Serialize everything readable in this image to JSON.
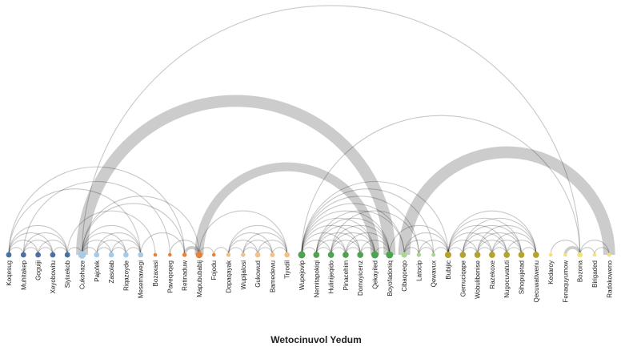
{
  "chart_data": {
    "type": "arc",
    "title": "Wetocinuvol Yedum",
    "groups": [
      {
        "id": 1,
        "color": "#4a6fa5"
      },
      {
        "id": 2,
        "color": "#a6cbe8"
      },
      {
        "id": 3,
        "color": "#e8813a"
      },
      {
        "id": 4,
        "color": "#f4c08a"
      },
      {
        "id": 5,
        "color": "#4fa34f"
      },
      {
        "id": 6,
        "color": "#a7d88f"
      },
      {
        "id": 7,
        "color": "#b5a32b"
      },
      {
        "id": 8,
        "color": "#f2e27a"
      }
    ],
    "nodes": [
      {
        "label": "Koqesug",
        "group": 1,
        "size": 1
      },
      {
        "label": "Muhitakep",
        "group": 1,
        "size": 1
      },
      {
        "label": "Goguiji",
        "group": 1,
        "size": 1
      },
      {
        "label": "Xeyobowitu",
        "group": 1,
        "size": 1
      },
      {
        "label": "Siyixekob",
        "group": 1,
        "size": 1
      },
      {
        "label": "Cukohaze",
        "group": 2,
        "size": 1.6
      },
      {
        "label": "Pajofek",
        "group": 2,
        "size": 1
      },
      {
        "label": "Zasolab",
        "group": 2,
        "size": 1
      },
      {
        "label": "Riqazoyde",
        "group": 2,
        "size": 1
      },
      {
        "label": "Mesemawegi",
        "group": 2,
        "size": 1
      },
      {
        "label": "Bozaxasi",
        "group": 3,
        "size": 0.5
      },
      {
        "label": "Paveqoqeg",
        "group": 3,
        "size": 0.5
      },
      {
        "label": "Retinaduw",
        "group": 3,
        "size": 0.7
      },
      {
        "label": "Mapububabij",
        "group": 3,
        "size": 1.4
      },
      {
        "label": "Fojodu",
        "group": 3,
        "size": 0.5
      },
      {
        "label": "Dopaqayak",
        "group": 4,
        "size": 0.7
      },
      {
        "label": "Wupijalosi",
        "group": 4,
        "size": 0.7
      },
      {
        "label": "Gukowud",
        "group": 4,
        "size": 1
      },
      {
        "label": "Bamedewu",
        "group": 4,
        "size": 0.8
      },
      {
        "label": "Tiyodil",
        "group": 4,
        "size": 1
      },
      {
        "label": "Wupejovip",
        "group": 5,
        "size": 1.5
      },
      {
        "label": "Nemitapokiqi",
        "group": 5,
        "size": 1.2
      },
      {
        "label": "Hulinijeqido",
        "group": 5,
        "size": 1.2
      },
      {
        "label": "Pinacehim",
        "group": 5,
        "size": 1.2
      },
      {
        "label": "Domoyicenz",
        "group": 5,
        "size": 1.2
      },
      {
        "label": "Qekayiled",
        "group": 5,
        "size": 1.5
      },
      {
        "label": "Boyofadoniq",
        "group": 5,
        "size": 1.5
      },
      {
        "label": "Cibaqoeqo",
        "group": 6,
        "size": 1.1
      },
      {
        "label": "Latocip",
        "group": 6,
        "size": 0.7
      },
      {
        "label": "Qewavux",
        "group": 6,
        "size": 0.6
      },
      {
        "label": "Bubijic",
        "group": 7,
        "size": 1.3
      },
      {
        "label": "Gemuciqape",
        "group": 7,
        "size": 1.2
      },
      {
        "label": "Wobulibenise",
        "group": 7,
        "size": 1.2
      },
      {
        "label": "Razekoxe",
        "group": 7,
        "size": 1.2
      },
      {
        "label": "Nugocuvatuti",
        "group": 7,
        "size": 1.2
      },
      {
        "label": "Sihopujetad",
        "group": 7,
        "size": 1.2
      },
      {
        "label": "Qecuwatiwenu",
        "group": 7,
        "size": 1.2
      },
      {
        "label": "Kedaroy",
        "group": 8,
        "size": 0.5
      },
      {
        "label": "Fenaquyumow",
        "group": 8,
        "size": 0.5
      },
      {
        "label": "Bozona",
        "group": 8,
        "size": 1
      },
      {
        "label": "Birigaded",
        "group": 8,
        "size": 0.5
      },
      {
        "label": "Radokoweno",
        "group": 8,
        "size": 0.6
      }
    ],
    "links": [
      [
        0,
        1,
        1
      ],
      [
        0,
        2,
        1
      ],
      [
        0,
        3,
        1
      ],
      [
        0,
        4,
        1
      ],
      [
        1,
        2,
        1
      ],
      [
        1,
        3,
        1
      ],
      [
        1,
        4,
        1
      ],
      [
        2,
        3,
        1
      ],
      [
        2,
        4,
        1
      ],
      [
        3,
        4,
        1
      ],
      [
        0,
        9,
        1
      ],
      [
        0,
        12,
        1
      ],
      [
        4,
        10,
        1
      ],
      [
        1,
        11,
        1
      ],
      [
        4,
        5,
        1
      ],
      [
        5,
        6,
        1
      ],
      [
        5,
        7,
        1
      ],
      [
        5,
        8,
        1
      ],
      [
        5,
        9,
        1
      ],
      [
        6,
        7,
        1
      ],
      [
        6,
        8,
        1
      ],
      [
        6,
        9,
        1
      ],
      [
        7,
        8,
        1
      ],
      [
        7,
        9,
        1
      ],
      [
        8,
        9,
        1
      ],
      [
        5,
        13,
        1
      ],
      [
        5,
        12,
        1
      ],
      [
        9,
        12,
        1
      ],
      [
        5,
        26,
        8
      ],
      [
        5,
        39,
        1
      ],
      [
        11,
        13,
        1
      ],
      [
        12,
        13,
        2
      ],
      [
        13,
        14,
        1
      ],
      [
        13,
        25,
        6
      ],
      [
        13,
        19,
        1
      ],
      [
        14,
        15,
        1
      ],
      [
        15,
        16,
        1
      ],
      [
        15,
        17,
        1
      ],
      [
        15,
        18,
        1
      ],
      [
        15,
        19,
        1
      ],
      [
        16,
        17,
        1
      ],
      [
        16,
        18,
        1
      ],
      [
        16,
        19,
        1
      ],
      [
        17,
        18,
        1
      ],
      [
        17,
        19,
        1
      ],
      [
        18,
        19,
        1
      ],
      [
        20,
        21,
        1
      ],
      [
        20,
        22,
        1
      ],
      [
        20,
        23,
        1
      ],
      [
        20,
        24,
        1
      ],
      [
        20,
        25,
        1
      ],
      [
        20,
        26,
        1
      ],
      [
        21,
        22,
        1
      ],
      [
        21,
        23,
        1
      ],
      [
        21,
        24,
        1
      ],
      [
        21,
        25,
        1
      ],
      [
        21,
        26,
        1
      ],
      [
        22,
        23,
        1
      ],
      [
        22,
        24,
        1
      ],
      [
        22,
        25,
        1
      ],
      [
        22,
        26,
        1
      ],
      [
        23,
        24,
        1
      ],
      [
        23,
        25,
        1
      ],
      [
        23,
        26,
        1
      ],
      [
        24,
        25,
        1
      ],
      [
        24,
        26,
        1
      ],
      [
        25,
        26,
        1
      ],
      [
        20,
        27,
        1
      ],
      [
        20,
        29,
        1
      ],
      [
        21,
        27,
        1
      ],
      [
        20,
        30,
        1
      ],
      [
        20,
        39,
        1
      ],
      [
        22,
        28,
        1
      ],
      [
        20,
        28,
        1
      ],
      [
        27,
        28,
        1
      ],
      [
        27,
        29,
        1
      ],
      [
        28,
        29,
        1
      ],
      [
        27,
        30,
        1
      ],
      [
        26,
        30,
        1
      ],
      [
        27,
        41,
        8
      ],
      [
        29,
        30,
        1
      ],
      [
        28,
        30,
        1
      ],
      [
        30,
        31,
        1
      ],
      [
        30,
        32,
        1
      ],
      [
        30,
        33,
        1
      ],
      [
        30,
        34,
        1
      ],
      [
        30,
        35,
        1
      ],
      [
        30,
        36,
        1
      ],
      [
        31,
        32,
        1
      ],
      [
        31,
        33,
        1
      ],
      [
        31,
        34,
        1
      ],
      [
        31,
        35,
        1
      ],
      [
        31,
        36,
        1
      ],
      [
        32,
        33,
        1
      ],
      [
        32,
        34,
        1
      ],
      [
        32,
        35,
        1
      ],
      [
        32,
        36,
        1
      ],
      [
        33,
        34,
        1
      ],
      [
        33,
        35,
        1
      ],
      [
        33,
        36,
        1
      ],
      [
        34,
        35,
        1
      ],
      [
        34,
        36,
        1
      ],
      [
        35,
        36,
        1
      ],
      [
        37,
        39,
        1
      ],
      [
        38,
        39,
        2
      ],
      [
        39,
        40,
        1
      ],
      [
        39,
        41,
        1
      ],
      [
        40,
        41,
        1
      ]
    ]
  }
}
